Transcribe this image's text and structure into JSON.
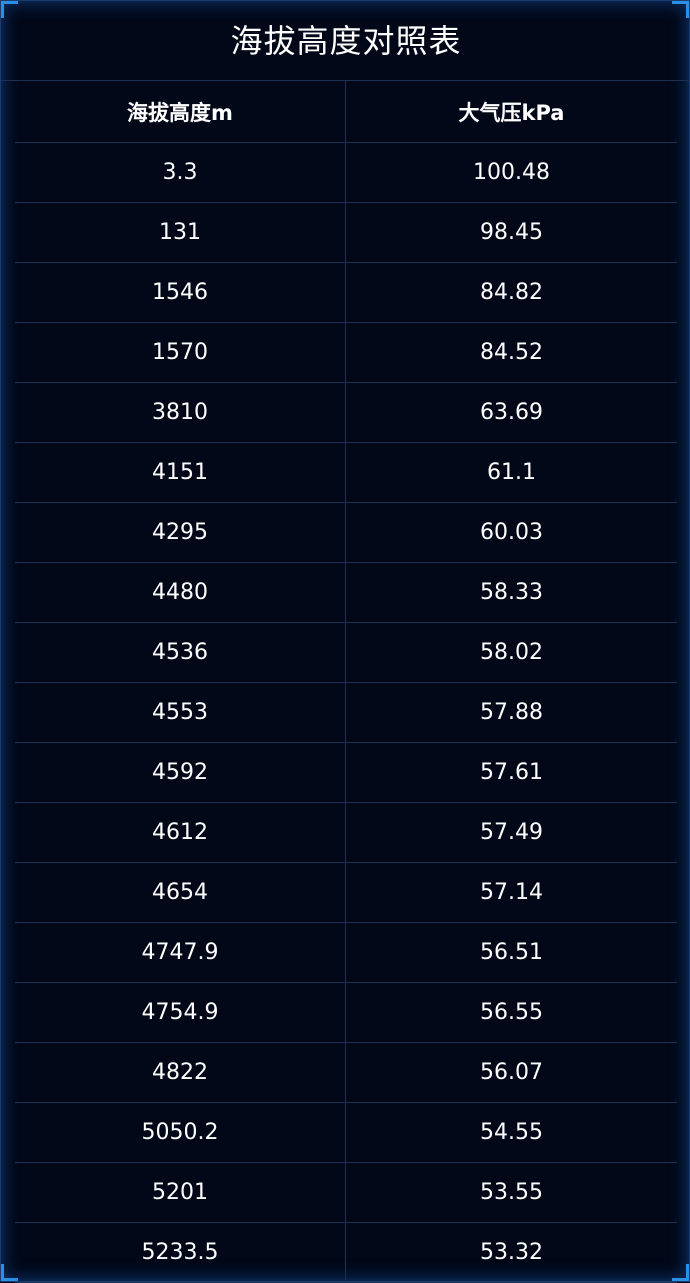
{
  "title": "海拔高度对照表",
  "accent_color": "#2b8fe8",
  "background_color": "#020818",
  "columns": [
    "海拔高度m",
    "大气压kPa"
  ],
  "rows": [
    [
      "3.3",
      "100.48"
    ],
    [
      "131",
      "98.45"
    ],
    [
      "1546",
      "84.82"
    ],
    [
      "1570",
      "84.52"
    ],
    [
      "3810",
      "63.69"
    ],
    [
      "4151",
      "61.1"
    ],
    [
      "4295",
      "60.03"
    ],
    [
      "4480",
      "58.33"
    ],
    [
      "4536",
      "58.02"
    ],
    [
      "4553",
      "57.88"
    ],
    [
      "4592",
      "57.61"
    ],
    [
      "4612",
      "57.49"
    ],
    [
      "4654",
      "57.14"
    ],
    [
      "4747.9",
      "56.51"
    ],
    [
      "4754.9",
      "56.55"
    ],
    [
      "4822",
      "56.07"
    ],
    [
      "5050.2",
      "54.55"
    ],
    [
      "5201",
      "53.55"
    ],
    [
      "5233.5",
      "53.32"
    ]
  ]
}
